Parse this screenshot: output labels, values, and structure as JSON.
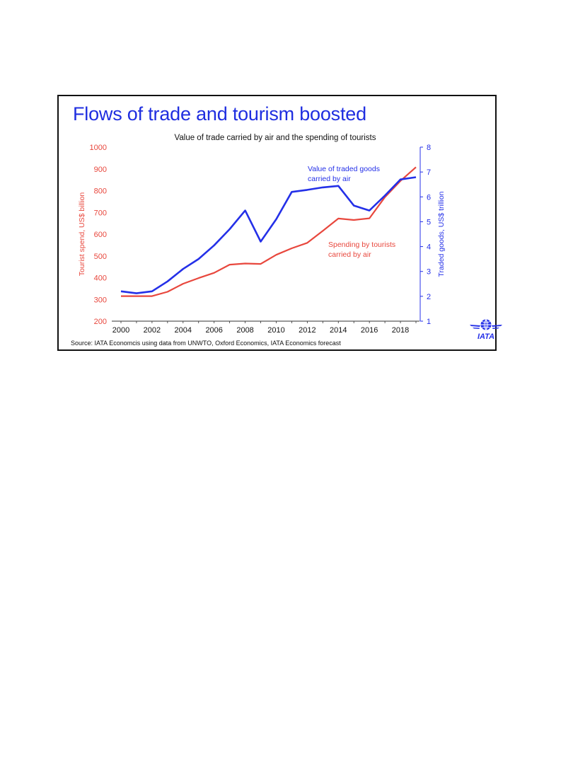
{
  "chart_data": {
    "type": "line",
    "headline": "Flows of trade and tourism boosted",
    "title": "Value of trade carried by air and the spending of tourists",
    "source": "Source: IATA Economcis using data from UNWTO, Oxford Economics, IATA Economics forecast",
    "x": [
      2000,
      2001,
      2002,
      2003,
      2004,
      2005,
      2006,
      2007,
      2008,
      2009,
      2010,
      2011,
      2012,
      2013,
      2014,
      2015,
      2016,
      2017,
      2018,
      2019
    ],
    "x_ticks": [
      "2000",
      "2002",
      "2004",
      "2006",
      "2008",
      "2010",
      "2012",
      "2014",
      "2016",
      "2018"
    ],
    "y_left": {
      "label": "Tourist spend, US$ billion",
      "range": [
        200,
        1000
      ],
      "ticks": [
        "1000",
        "900",
        "800",
        "700",
        "600",
        "500",
        "400",
        "300",
        "200"
      ]
    },
    "y_right": {
      "label": "Traded goods, US$ trillion",
      "range": [
        1,
        8
      ],
      "ticks": [
        "8",
        "7",
        "6",
        "5",
        "4",
        "3",
        "2",
        "1"
      ]
    },
    "series": [
      {
        "name": "Spending by tourists carried by air",
        "name_lines": [
          "Spending by tourists",
          "carried by air"
        ],
        "axis": "left",
        "color": "#e8473d",
        "values": [
          315,
          315,
          315,
          335,
          372,
          398,
          422,
          460,
          465,
          463,
          505,
          535,
          560,
          615,
          672,
          665,
          673,
          770,
          845,
          908
        ]
      },
      {
        "name": "Value of traded goods carried by air",
        "name_lines": [
          "Value of traded goods",
          "carried by air"
        ],
        "axis": "right",
        "color": "#2430e8",
        "values": [
          2.2,
          2.12,
          2.2,
          2.6,
          3.1,
          3.5,
          4.05,
          4.7,
          5.45,
          4.2,
          5.1,
          6.2,
          6.28,
          6.38,
          6.44,
          5.65,
          5.45,
          6.05,
          6.7,
          6.79
        ]
      }
    ],
    "grid": false,
    "legend": "inline labels"
  },
  "logo": {
    "text": "IATA",
    "icon": "globe-icon"
  }
}
